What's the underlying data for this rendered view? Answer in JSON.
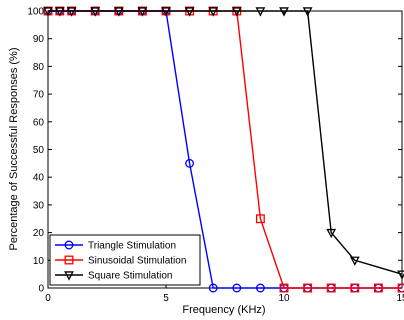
{
  "chart_data": {
    "type": "line",
    "title": "",
    "xlabel": "Frequency (KHz)",
    "ylabel": "Percentage of Successful Responses (%)",
    "xlim": [
      0,
      15
    ],
    "ylim": [
      0,
      100
    ],
    "xticks": [
      0,
      5,
      10,
      15
    ],
    "yticks": [
      0,
      10,
      20,
      30,
      40,
      50,
      60,
      70,
      80,
      90,
      100
    ],
    "grid": false,
    "legend_position": "bottom-left",
    "series": [
      {
        "name": "Triangle Stimulation",
        "color": "#0000ff",
        "marker": "circle",
        "x": [
          0,
          0.5,
          1,
          2,
          3,
          4,
          5,
          6,
          7,
          8,
          9,
          10,
          11,
          12,
          13,
          14,
          15
        ],
        "y": [
          100,
          100,
          100,
          100,
          100,
          100,
          100,
          45,
          0,
          0,
          0,
          0,
          0,
          0,
          0,
          0,
          0
        ]
      },
      {
        "name": "Sinusoidal Stimulation",
        "color": "#ff0000",
        "marker": "square",
        "x": [
          0,
          0.5,
          1,
          2,
          3,
          4,
          5,
          6,
          7,
          8,
          9,
          10,
          11,
          12,
          13,
          14,
          15
        ],
        "y": [
          100,
          100,
          100,
          100,
          100,
          100,
          100,
          100,
          100,
          100,
          25,
          0,
          0,
          0,
          0,
          0,
          0
        ]
      },
      {
        "name": "Square Stimulation",
        "color": "#000000",
        "marker": "triangle-down",
        "x": [
          0,
          0.5,
          1,
          2,
          3,
          4,
          5,
          6,
          7,
          8,
          9,
          10,
          11,
          12,
          13,
          15
        ],
        "y": [
          100,
          100,
          100,
          100,
          100,
          100,
          100,
          100,
          100,
          100,
          100,
          100,
          100,
          20,
          10,
          5
        ]
      }
    ]
  }
}
